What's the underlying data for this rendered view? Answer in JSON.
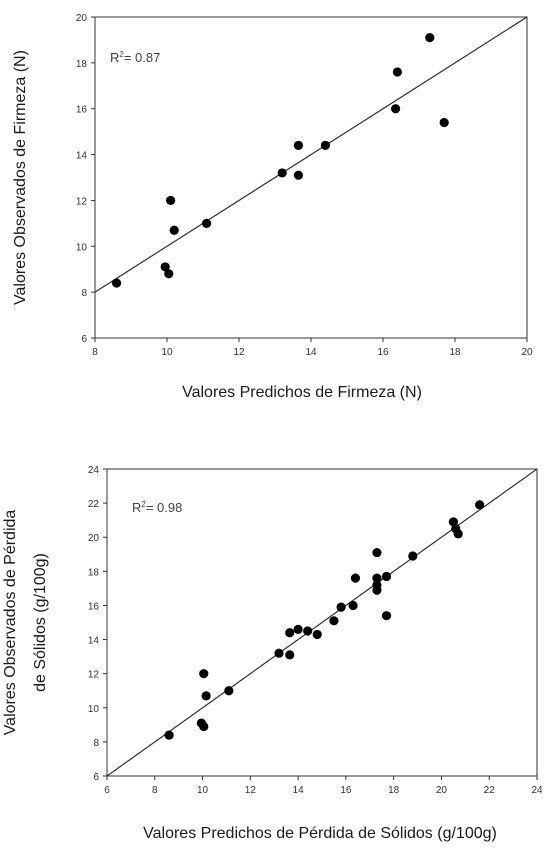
{
  "chart_data": [
    {
      "type": "scatter",
      "r2_prefix": "R",
      "r2_sup": "2",
      "r2_value": "= 0.87",
      "xlabel": "Valores Predichos de Firmeza (N)",
      "ylabel_lines": [
        "Valores Observados de Firmeza (N)"
      ],
      "xlim": [
        8,
        20
      ],
      "ylim": [
        6,
        20
      ],
      "xticks": [
        8,
        10,
        12,
        14,
        16,
        18,
        20
      ],
      "yticks": [
        6,
        8,
        10,
        12,
        14,
        16,
        18,
        20
      ],
      "grid": false,
      "fit_line": [
        [
          8,
          8
        ],
        [
          20,
          20
        ]
      ],
      "points": [
        {
          "x": 8.6,
          "y": 8.4
        },
        {
          "x": 9.95,
          "y": 9.1
        },
        {
          "x": 10.05,
          "y": 8.8
        },
        {
          "x": 10.1,
          "y": 12.0
        },
        {
          "x": 10.2,
          "y": 10.7
        },
        {
          "x": 11.1,
          "y": 11.0
        },
        {
          "x": 13.2,
          "y": 13.2
        },
        {
          "x": 13.65,
          "y": 14.4
        },
        {
          "x": 13.65,
          "y": 13.1
        },
        {
          "x": 14.4,
          "y": 14.4
        },
        {
          "x": 16.35,
          "y": 16.0
        },
        {
          "x": 16.4,
          "y": 17.6
        },
        {
          "x": 17.3,
          "y": 19.1
        },
        {
          "x": 17.7,
          "y": 15.4
        }
      ]
    },
    {
      "type": "scatter",
      "r2_prefix": "R",
      "r2_sup": "2",
      "r2_value": "= 0.98",
      "xlabel": "Valores Predichos de Pérdida de Sólidos (g/100g)",
      "ylabel_lines": [
        "Valores Observados de Pérdida",
        "de Sólidos (g/100g)"
      ],
      "xlim": [
        6,
        24
      ],
      "ylim": [
        6,
        24
      ],
      "xticks": [
        6,
        8,
        10,
        12,
        14,
        16,
        18,
        20,
        22,
        24
      ],
      "yticks": [
        6,
        8,
        10,
        12,
        14,
        16,
        18,
        20,
        22,
        24
      ],
      "grid": false,
      "fit_line": [
        [
          6,
          6
        ],
        [
          24,
          24
        ]
      ],
      "points": [
        {
          "x": 8.6,
          "y": 8.4
        },
        {
          "x": 9.95,
          "y": 9.1
        },
        {
          "x": 10.05,
          "y": 8.9
        },
        {
          "x": 10.05,
          "y": 12.0
        },
        {
          "x": 10.15,
          "y": 10.7
        },
        {
          "x": 11.1,
          "y": 11.0
        },
        {
          "x": 13.2,
          "y": 13.2
        },
        {
          "x": 13.65,
          "y": 14.4
        },
        {
          "x": 13.65,
          "y": 13.1
        },
        {
          "x": 14.0,
          "y": 14.6
        },
        {
          "x": 14.4,
          "y": 14.5
        },
        {
          "x": 14.8,
          "y": 14.3
        },
        {
          "x": 15.5,
          "y": 15.1
        },
        {
          "x": 15.8,
          "y": 15.9
        },
        {
          "x": 16.3,
          "y": 16.0
        },
        {
          "x": 16.4,
          "y": 17.6
        },
        {
          "x": 17.3,
          "y": 19.1
        },
        {
          "x": 17.3,
          "y": 17.6
        },
        {
          "x": 17.3,
          "y": 17.2
        },
        {
          "x": 17.3,
          "y": 16.9
        },
        {
          "x": 17.7,
          "y": 17.7
        },
        {
          "x": 17.7,
          "y": 15.4
        },
        {
          "x": 18.8,
          "y": 18.9
        },
        {
          "x": 20.5,
          "y": 20.9
        },
        {
          "x": 20.6,
          "y": 20.5
        },
        {
          "x": 20.7,
          "y": 20.2
        },
        {
          "x": 21.6,
          "y": 21.9
        }
      ]
    }
  ]
}
